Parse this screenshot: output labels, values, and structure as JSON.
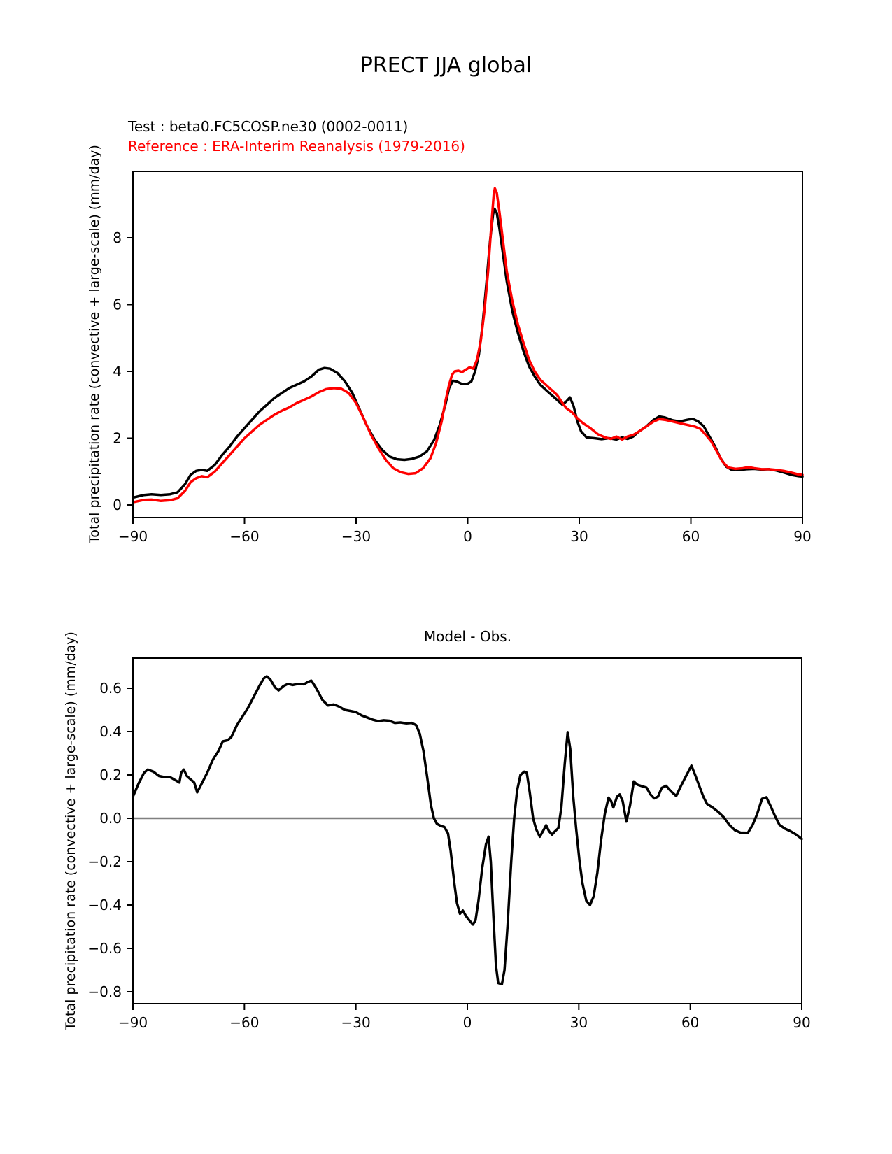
{
  "title": "PRECT JJA global",
  "legend": {
    "test": "Test : beta0.FC5COSP.ne30 (0002-0011)",
    "test_color": "#000000",
    "reference": "Reference : ERA-Interim Reanalysis (1979-2016)",
    "reference_color": "#ff0000"
  },
  "colors": {
    "axis": "#000000",
    "zero_line": "#808080",
    "background": "#ffffff"
  },
  "chart_data": [
    {
      "type": "line",
      "title": "PRECT JJA global",
      "xlabel": "",
      "ylabel": "Total precipitation rate (convective + large-scale) (mm/day)",
      "xlim": [
        -90,
        90
      ],
      "ylim": [
        -0.38,
        10.0
      ],
      "xticks": [
        -90,
        -60,
        -30,
        0,
        30,
        60,
        90
      ],
      "yticks": [
        0,
        2,
        4,
        6,
        8
      ],
      "grid": false,
      "legend_position": "above-left",
      "series": [
        {
          "name": "Test : beta0.FC5COSP.ne30 (0002-0011)",
          "color": "#000000",
          "x": [
            -90,
            -87,
            -85,
            -82.5,
            -80,
            -78,
            -76,
            -74.5,
            -73,
            -71.5,
            -70,
            -68,
            -66,
            -64,
            -62,
            -60,
            -58,
            -56,
            -54,
            -52,
            -50,
            -48,
            -46,
            -44,
            -42,
            -40,
            -38.5,
            -37,
            -35,
            -33,
            -31,
            -29,
            -27,
            -25,
            -23,
            -21,
            -19,
            -17,
            -15,
            -13,
            -11,
            -9,
            -7.5,
            -6,
            -5,
            -4,
            -3,
            -1.5,
            0,
            1,
            2,
            3,
            4,
            5,
            6,
            6.8,
            7.2,
            7.8,
            8.5,
            9.5,
            10.5,
            12,
            13.5,
            15,
            16.5,
            18,
            19.5,
            21,
            22.5,
            24,
            25.5,
            26.5,
            27.5,
            28.5,
            29.5,
            30.5,
            32,
            34,
            36,
            38,
            40,
            41.5,
            43,
            44.5,
            46,
            48,
            50,
            51.5,
            53,
            55,
            57,
            59,
            60.5,
            62,
            63.5,
            65,
            66.5,
            68,
            69.5,
            71,
            73,
            75,
            77,
            79,
            81,
            83,
            85,
            87,
            89,
            90
          ],
          "y": [
            0.22,
            0.3,
            0.32,
            0.3,
            0.32,
            0.38,
            0.62,
            0.9,
            1.02,
            1.05,
            1.02,
            1.2,
            1.5,
            1.75,
            2.05,
            2.3,
            2.55,
            2.8,
            3.0,
            3.2,
            3.35,
            3.5,
            3.6,
            3.7,
            3.85,
            4.05,
            4.1,
            4.08,
            3.95,
            3.7,
            3.35,
            2.85,
            2.35,
            1.95,
            1.65,
            1.45,
            1.37,
            1.35,
            1.38,
            1.45,
            1.6,
            1.95,
            2.4,
            3.0,
            3.5,
            3.72,
            3.7,
            3.62,
            3.63,
            3.7,
            4.0,
            4.5,
            5.4,
            6.6,
            7.9,
            8.7,
            8.87,
            8.75,
            8.3,
            7.5,
            6.7,
            5.8,
            5.15,
            4.6,
            4.15,
            3.85,
            3.6,
            3.45,
            3.3,
            3.15,
            3.0,
            3.1,
            3.22,
            2.95,
            2.5,
            2.2,
            2.02,
            2.0,
            1.97,
            2.0,
            1.96,
            2.02,
            1.98,
            2.05,
            2.2,
            2.35,
            2.55,
            2.65,
            2.62,
            2.54,
            2.5,
            2.55,
            2.58,
            2.5,
            2.35,
            2.05,
            1.75,
            1.4,
            1.15,
            1.05,
            1.05,
            1.07,
            1.08,
            1.06,
            1.07,
            1.03,
            0.97,
            0.9,
            0.86,
            0.85
          ]
        },
        {
          "name": "Reference : ERA-Interim Reanalysis (1979-2016)",
          "color": "#ff0000",
          "x": [
            -90,
            -87,
            -85,
            -82.5,
            -80,
            -78,
            -76,
            -74.5,
            -73,
            -71.5,
            -70,
            -68,
            -66,
            -64,
            -62,
            -60,
            -58,
            -56,
            -54,
            -52,
            -50,
            -48,
            -46,
            -44,
            -42,
            -40,
            -38,
            -36,
            -34,
            -32,
            -30,
            -28,
            -26,
            -24,
            -22,
            -20,
            -18,
            -16,
            -14,
            -12,
            -10,
            -8.5,
            -7,
            -6,
            -5,
            -4.2,
            -3.5,
            -2.5,
            -1.5,
            -0.5,
            0.5,
            1.5,
            2.5,
            3.5,
            4.5,
            5.5,
            6.3,
            7,
            7.3,
            7.8,
            8.5,
            9.5,
            10.5,
            12,
            13.5,
            15,
            16.5,
            18,
            19.5,
            21,
            22.5,
            24,
            25.5,
            26.5,
            28,
            29.5,
            31,
            33,
            35,
            37,
            38.5,
            40,
            41.5,
            43,
            44.5,
            46,
            48,
            50,
            51.5,
            53,
            55,
            57,
            59,
            61,
            62.5,
            64,
            65.5,
            67,
            68.5,
            70,
            72,
            74,
            75.5,
            77,
            79,
            81,
            83,
            85,
            87,
            89,
            90
          ],
          "y": [
            0.08,
            0.15,
            0.16,
            0.12,
            0.14,
            0.2,
            0.42,
            0.68,
            0.8,
            0.86,
            0.83,
            1.0,
            1.25,
            1.5,
            1.75,
            2.0,
            2.2,
            2.4,
            2.55,
            2.7,
            2.82,
            2.92,
            3.05,
            3.15,
            3.25,
            3.38,
            3.47,
            3.5,
            3.48,
            3.35,
            3.05,
            2.6,
            2.1,
            1.7,
            1.35,
            1.1,
            0.98,
            0.93,
            0.95,
            1.1,
            1.4,
            1.85,
            2.5,
            3.1,
            3.6,
            3.9,
            4.0,
            4.02,
            3.98,
            4.05,
            4.12,
            4.08,
            4.35,
            4.9,
            5.8,
            7.0,
            8.3,
            9.3,
            9.48,
            9.35,
            8.8,
            7.9,
            7.0,
            6.1,
            5.4,
            4.85,
            4.35,
            4.0,
            3.75,
            3.6,
            3.45,
            3.3,
            3.05,
            2.9,
            2.78,
            2.6,
            2.45,
            2.3,
            2.12,
            2.02,
            1.98,
            2.05,
            1.96,
            2.05,
            2.1,
            2.2,
            2.35,
            2.5,
            2.57,
            2.55,
            2.5,
            2.45,
            2.4,
            2.35,
            2.28,
            2.1,
            1.9,
            1.6,
            1.3,
            1.12,
            1.08,
            1.1,
            1.13,
            1.1,
            1.07,
            1.07,
            1.05,
            1.02,
            0.97,
            0.91,
            0.9
          ]
        }
      ]
    },
    {
      "type": "line",
      "title": "Model - Obs.",
      "xlabel": "",
      "ylabel": "Total precipitation rate (convective + large-scale) (mm/day)",
      "xlim": [
        -90,
        90
      ],
      "ylim": [
        -0.855,
        0.74
      ],
      "xticks": [
        -90,
        -60,
        -30,
        0,
        30,
        60,
        90
      ],
      "yticks": [
        0.6,
        0.4,
        0.2,
        0.0,
        -0.2,
        -0.4,
        -0.6,
        -0.8
      ],
      "grid": false,
      "zero_line": true,
      "series": [
        {
          "name": "Model - Obs.",
          "color": "#000000",
          "x": [
            -90,
            -88.5,
            -87,
            -86,
            -84.5,
            -83,
            -81.5,
            -80,
            -78.5,
            -77.5,
            -77,
            -76.3,
            -75.5,
            -74.5,
            -73.5,
            -72.7,
            -71.5,
            -70,
            -68.5,
            -67,
            -65.8,
            -64.5,
            -63.5,
            -62,
            -60.5,
            -59,
            -57.5,
            -56,
            -54.8,
            -54,
            -53,
            -51.8,
            -50.8,
            -49.5,
            -48.3,
            -47,
            -45.5,
            -44,
            -42.8,
            -42,
            -41,
            -40.2,
            -39,
            -37.5,
            -36,
            -34.5,
            -33,
            -31.5,
            -30,
            -28.5,
            -27,
            -25.5,
            -24,
            -22.5,
            -21,
            -19.5,
            -18,
            -16.5,
            -15,
            -13.8,
            -12.8,
            -11.8,
            -10.8,
            -9.8,
            -9,
            -8.2,
            -7.2,
            -6.2,
            -5.2,
            -4.5,
            -3.5,
            -2.8,
            -2,
            -1.2,
            -0.4,
            0.5,
            1.5,
            2.2,
            3,
            4,
            5,
            5.7,
            6.3,
            7,
            7.7,
            8.3,
            9.3,
            10,
            10.8,
            11.8,
            12.6,
            13.4,
            14.3,
            15.3,
            16,
            16.8,
            17.7,
            18.5,
            19.5,
            20.5,
            21.2,
            22,
            22.8,
            23.6,
            24.5,
            25.3,
            26.2,
            27,
            27.7,
            28.5,
            29.3,
            30.2,
            31,
            32,
            33,
            34,
            35,
            36,
            37,
            38,
            38.7,
            39.3,
            40.3,
            41,
            41.8,
            42.8,
            43.8,
            44.8,
            45.8,
            47,
            48.2,
            49.3,
            50.3,
            51.3,
            52.3,
            53.5,
            54.8,
            56.2,
            57.5,
            59,
            60.3,
            61.3,
            62.3,
            63.5,
            64.5,
            66,
            67.5,
            69,
            70.5,
            72,
            73.5,
            75.5,
            76.8,
            78,
            79.3,
            80.5,
            81.8,
            82.8,
            84,
            85.5,
            87,
            88.5,
            90
          ],
          "y": [
            0.1,
            0.16,
            0.21,
            0.225,
            0.215,
            0.195,
            0.19,
            0.19,
            0.175,
            0.165,
            0.21,
            0.225,
            0.195,
            0.18,
            0.165,
            0.12,
            0.16,
            0.21,
            0.27,
            0.31,
            0.355,
            0.36,
            0.375,
            0.43,
            0.47,
            0.51,
            0.56,
            0.61,
            0.645,
            0.655,
            0.64,
            0.605,
            0.59,
            0.61,
            0.62,
            0.615,
            0.62,
            0.618,
            0.63,
            0.635,
            0.61,
            0.585,
            0.545,
            0.52,
            0.525,
            0.515,
            0.5,
            0.495,
            0.49,
            0.475,
            0.465,
            0.455,
            0.448,
            0.452,
            0.45,
            0.44,
            0.442,
            0.438,
            0.44,
            0.43,
            0.39,
            0.31,
            0.19,
            0.06,
            0.0,
            -0.025,
            -0.035,
            -0.04,
            -0.07,
            -0.15,
            -0.3,
            -0.39,
            -0.44,
            -0.425,
            -0.45,
            -0.47,
            -0.49,
            -0.47,
            -0.38,
            -0.23,
            -0.12,
            -0.085,
            -0.2,
            -0.45,
            -0.68,
            -0.76,
            -0.765,
            -0.7,
            -0.5,
            -0.2,
            0.0,
            0.13,
            0.2,
            0.215,
            0.21,
            0.12,
            0.0,
            -0.05,
            -0.085,
            -0.055,
            -0.032,
            -0.06,
            -0.075,
            -0.06,
            -0.045,
            0.05,
            0.25,
            0.397,
            0.32,
            0.1,
            -0.05,
            -0.2,
            -0.3,
            -0.38,
            -0.4,
            -0.36,
            -0.25,
            -0.1,
            0.02,
            0.095,
            0.08,
            0.05,
            0.1,
            0.11,
            0.08,
            -0.015,
            0.06,
            0.17,
            0.155,
            0.148,
            0.142,
            0.11,
            0.092,
            0.1,
            0.14,
            0.15,
            0.125,
            0.103,
            0.15,
            0.2,
            0.243,
            0.2,
            0.155,
            0.1,
            0.066,
            0.05,
            0.03,
            0.005,
            -0.03,
            -0.055,
            -0.066,
            -0.067,
            -0.03,
            0.02,
            0.09,
            0.097,
            0.05,
            0.01,
            -0.03,
            -0.048,
            -0.06,
            -0.075,
            -0.095
          ]
        }
      ]
    }
  ]
}
